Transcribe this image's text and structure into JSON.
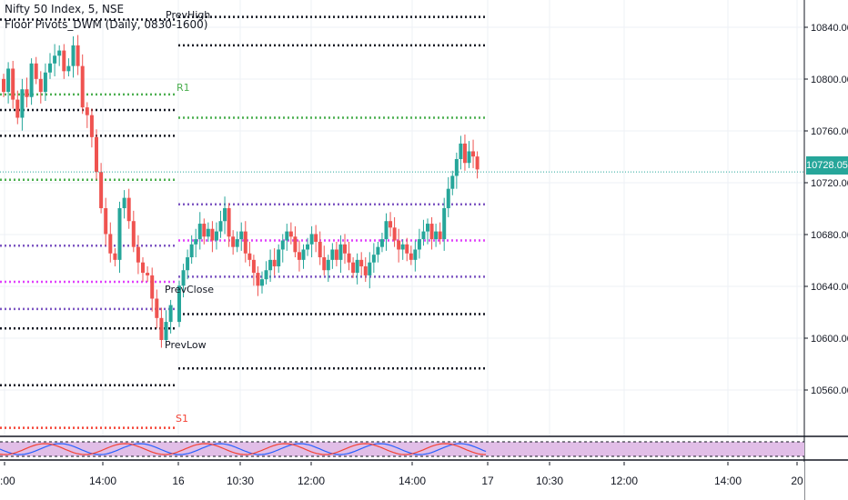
{
  "header": {
    "title": "Nifty 50 Index, 5, NSE",
    "indicator": "Floor Pivots_DWM (Daily, 0830-1600)"
  },
  "level_labels": {
    "prev_high": "PrevHigh",
    "r1": "R1",
    "prev_close": "PrevClose",
    "prev_low": "PrevLow",
    "s1": "S1"
  },
  "price_axis": {
    "ticks": [
      "10840.00",
      "10800.00",
      "10760.00",
      "10720.00",
      "10680.00",
      "10640.00",
      "10600.00",
      "10560.00"
    ],
    "current_price": "10728.05"
  },
  "time_axis": {
    "ticks": [
      "2:00",
      "14:00",
      "16",
      "10:30",
      "12:00",
      "14:00",
      "17",
      "10:30",
      "12:00",
      "14:00",
      "20"
    ]
  },
  "colors": {
    "bull": "#26a69a",
    "bear": "#ef5350",
    "pivot_black": "#131722",
    "r1_green": "#4caf50",
    "tc_bc_purple": "#7e57c2",
    "pivot_magenta": "#e040fb",
    "s1_red": "#f44336",
    "current_line": "#26a69a",
    "osc_fill": "#e1bee7",
    "osc_blue": "#2962ff",
    "osc_red": "#f44336"
  },
  "chart_data": {
    "type": "candlestick",
    "symbol": "Nifty 50 Index",
    "interval": "5",
    "exchange": "NSE",
    "ylim": [
      10540,
      10860
    ],
    "current_price": 10728.05,
    "pivot_levels": {
      "day1": {
        "PrevHigh": 10836,
        "R1": 10790,
        "R_black": 10775,
        "mid": 10756,
        "green_mid": 10722,
        "TC": 10683,
        "pivot": 10667,
        "BC": 10646,
        "PrevClose": 10612,
        "PrevLow": 10563,
        "S1": 10530
      },
      "day2": {
        "top": 10848,
        "PrevHigh": 10826,
        "R1": 10770,
        "TC": 10703,
        "pivot": 10675,
        "BC": 10647,
        "PrevClose": 10618,
        "PrevLow": 10576
      }
    },
    "series": [
      {
        "segment": "day1",
        "close": [
          10790,
          10808,
          10784,
          10770,
          10792,
          10786,
          10812,
          10800,
          10790,
          10805,
          10812,
          10818,
          10822,
          10806,
          10810,
          10826,
          10810,
          10778,
          10772,
          10755,
          10728,
          10700,
          10680,
          10665,
          10660,
          10700,
          10708,
          10690,
          10670,
          10658,
          10650,
          10648,
          10630,
          10615,
          10598,
          10612,
          10625
        ]
      },
      {
        "segment": "day2",
        "close": [
          10640,
          10652,
          10662,
          10672,
          10676,
          10688,
          10678,
          10684,
          10675,
          10682,
          10690,
          10700,
          10678,
          10670,
          10676,
          10682,
          10665,
          10660,
          10650,
          10640,
          10645,
          10652,
          10660,
          10655,
          10668,
          10675,
          10682,
          10678,
          10666,
          10660,
          10668,
          10672,
          10680,
          10674,
          10662,
          10652,
          10660,
          10668,
          10660,
          10672,
          10665,
          10658,
          10650,
          10660,
          10655,
          10648,
          10658,
          10664,
          10670,
          10676,
          10690,
          10685,
          10675,
          10668,
          10672,
          10665,
          10660,
          10668,
          10676,
          10682,
          10688,
          10676,
          10682,
          10676,
          10700,
          10715,
          10725,
          10738,
          10750,
          10735,
          10744,
          10740,
          10730
        ]
      }
    ]
  }
}
